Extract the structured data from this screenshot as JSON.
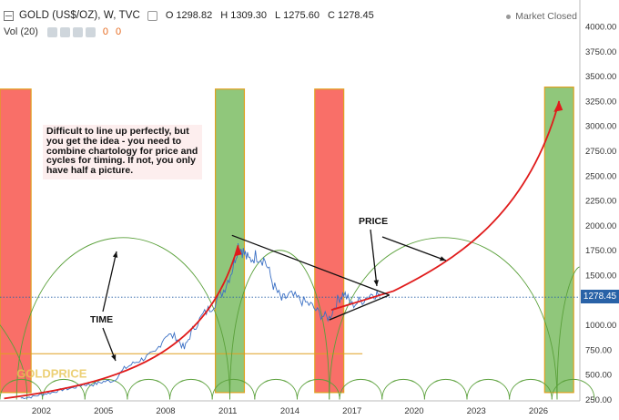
{
  "header": {
    "symbol": "GOLD (US$/OZ), W, TVC",
    "ohlc": [
      {
        "label": "O",
        "value": "1298.82"
      },
      {
        "label": "H",
        "value": "1309.30"
      },
      {
        "label": "L",
        "value": "1275.60"
      },
      {
        "label": "C",
        "value": "1278.45"
      }
    ],
    "market_status": "Market Closed",
    "volume_label": "Vol (20)",
    "volume_values": [
      "0",
      "0"
    ]
  },
  "current_price": "1278.45",
  "annotations": {
    "note": "Difficult to line up perfectly, but you get the idea - you need to combine chartology for price and cycles for timing. If not, you only have half a picture.",
    "time_label": "TIME",
    "price_label": "PRICE",
    "watermark": "GOLDPRICE"
  },
  "colors": {
    "price_line": "#3a6fc4",
    "forecast_arrow": "#e01b1b",
    "red_zone": "#f8564e",
    "green_zone": "#7cbd64",
    "zone_border": "#e0a020",
    "cycle_arc": "#5aa03a",
    "price_tag": "#2962a7"
  },
  "chart_data": {
    "type": "line",
    "title": "GOLD (US$/OZ), W, TVC",
    "xlabel": "",
    "ylabel": "",
    "xlim": [
      2000.0,
      2028.0
    ],
    "ylim": [
      250,
      4000
    ],
    "x_ticks": [
      "2002",
      "2005",
      "2008",
      "2011",
      "2014",
      "2017",
      "2020",
      "2023",
      "2026"
    ],
    "y_ticks": [
      "250.00",
      "500.00",
      "750.00",
      "1000.00",
      "1250.00",
      "1500.00",
      "1750.00",
      "2000.00",
      "2250.00",
      "2500.00",
      "2750.00",
      "3000.00",
      "3250.00",
      "3500.00",
      "3750.00",
      "4000.00"
    ],
    "grid": false,
    "series": [
      {
        "x": [
          2001.0,
          2001.5,
          2002.0,
          2002.5,
          2003.0,
          2003.5,
          2004.0,
          2004.5,
          2005.0,
          2005.5,
          2006.0,
          2006.5,
          2007.0,
          2007.5,
          2008.0,
          2008.5,
          2008.9,
          2009.3,
          2009.8,
          2010.3,
          2010.8,
          2011.2,
          2011.5,
          2011.7,
          2012.0,
          2012.4,
          2012.8,
          2013.2,
          2013.6,
          2014.0,
          2014.5,
          2015.0,
          2015.5,
          2015.9,
          2016.3,
          2016.6,
          2017.0,
          2017.5,
          2018.0,
          2018.4
        ],
        "y": [
          265,
          275,
          300,
          320,
          350,
          365,
          400,
          400,
          430,
          440,
          560,
          620,
          670,
          720,
          900,
          880,
          760,
          950,
          1100,
          1200,
          1350,
          1550,
          1800,
          1750,
          1650,
          1700,
          1650,
          1400,
          1250,
          1300,
          1250,
          1200,
          1100,
          1070,
          1250,
          1320,
          1200,
          1250,
          1320,
          1300
        ]
      }
    ],
    "forecast_path": {
      "x": [
        2000.2,
        2003.0,
        2005.5,
        2008.0,
        2010.0,
        2011.5,
        2013.5,
        2016.0,
        2019.0,
        2022.0,
        2024.0,
        2025.7,
        2027.0
      ],
      "y": [
        260,
        330,
        450,
        620,
        900,
        1800,
        1100,
        1150,
        1350,
        1700,
        2050,
        2450,
        3250
      ]
    },
    "zones": [
      {
        "type": "red",
        "x_start": 2000.0,
        "x_end": 2001.5,
        "y_top": 3370
      },
      {
        "type": "green",
        "x_start": 2010.4,
        "x_end": 2011.8,
        "y_top": 3370
      },
      {
        "type": "red",
        "x_start": 2015.2,
        "x_end": 2016.6,
        "y_top": 3370
      },
      {
        "type": "green",
        "x_start": 2026.3,
        "x_end": 2027.7,
        "y_top": 3390
      }
    ],
    "current_price_line": 1278.45,
    "support_level": 710
  }
}
